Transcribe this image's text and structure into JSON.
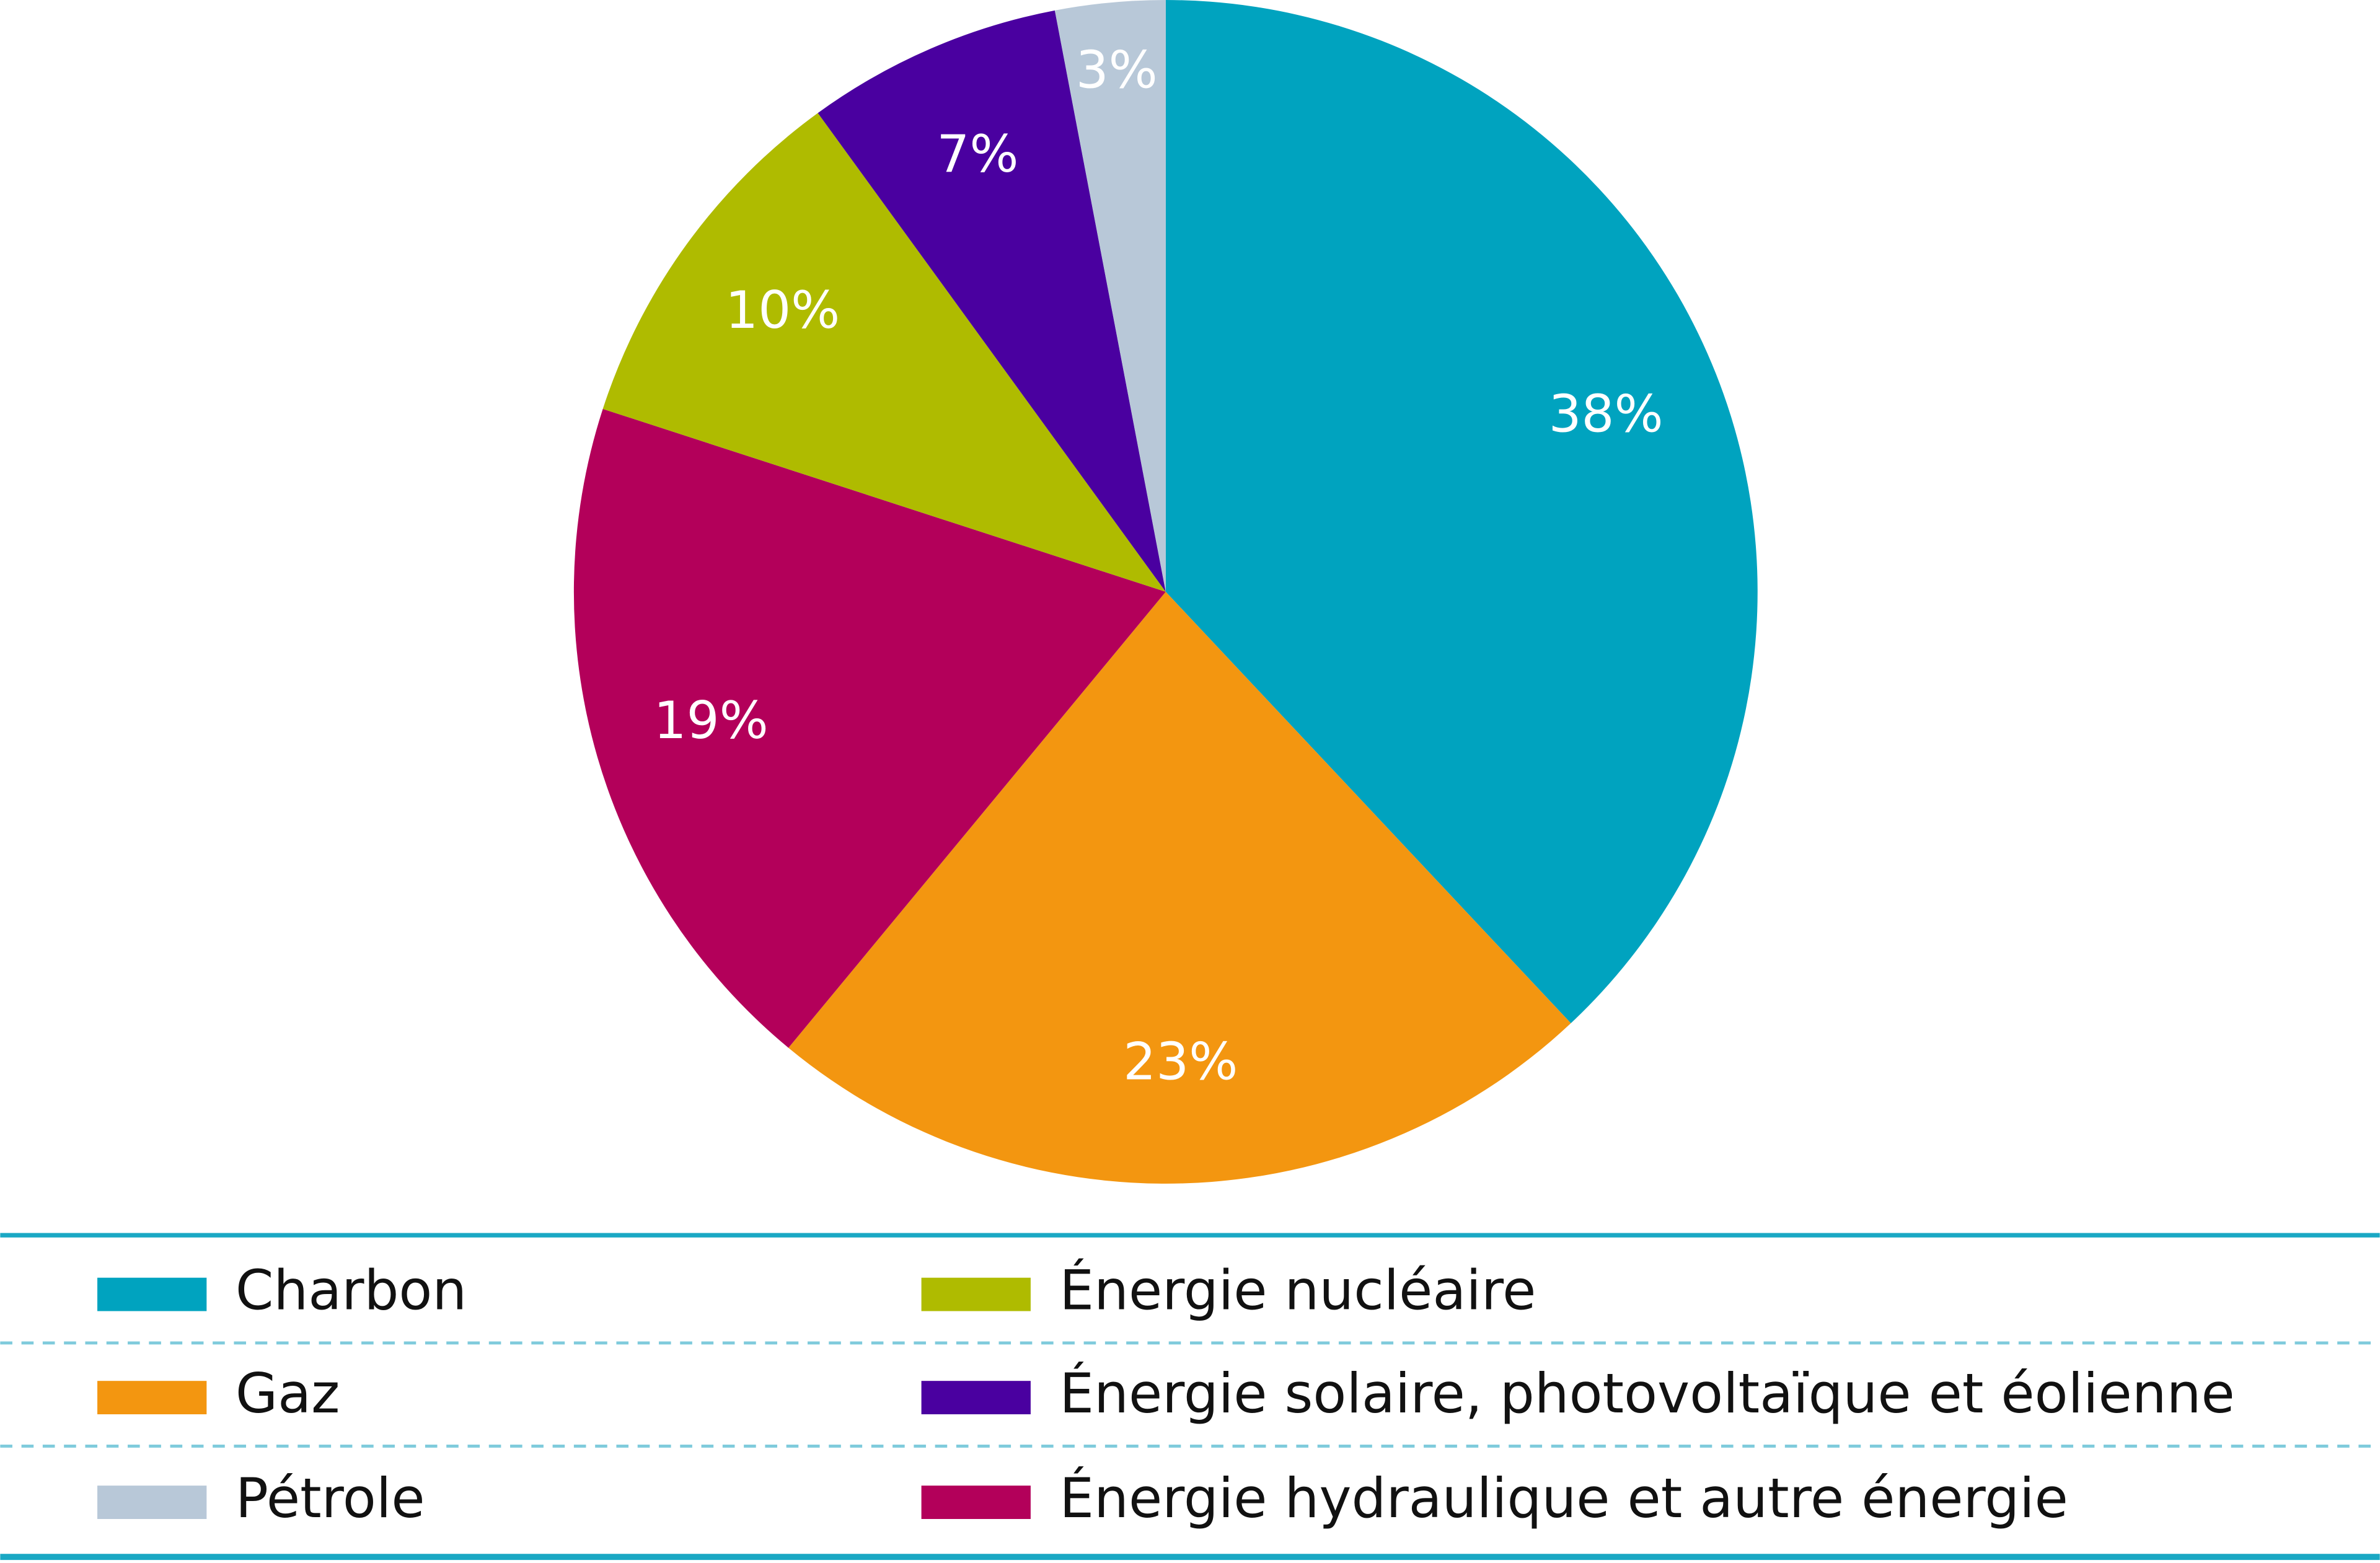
{
  "chart_data": {
    "type": "pie",
    "categories": [
      "Charbon",
      "Gaz",
      "Énergie hydraulique et autre énergie",
      "Énergie nucléaire",
      "Énergie solaire, photovoltaïque et éolienne",
      "Pétrole"
    ],
    "values": [
      38,
      23,
      19,
      10,
      7,
      3
    ],
    "value_labels": [
      "38%",
      "23%",
      "19%",
      "10%",
      "7%",
      "3%"
    ],
    "colors": [
      "#00a3bf",
      "#f39610",
      "#b3005a",
      "#afbb00",
      "#4a00a0",
      "#b8c8d8"
    ]
  }
}
